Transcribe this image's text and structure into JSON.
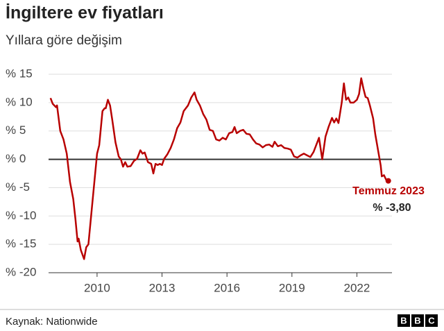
{
  "chart_data": {
    "type": "line",
    "title": "İngiltere ev fiyatları",
    "subtitle": "Yıllara göre değişim",
    "source": "Kaynak: Nationwide",
    "logo": [
      "B",
      "B",
      "C"
    ],
    "xlim": [
      2007.76,
      2023.62
    ],
    "xticks": [
      2010,
      2013,
      2016,
      2019,
      2022
    ],
    "ylim": [
      -20,
      15
    ],
    "yticks": [
      {
        "value": 15,
        "label": "% 15"
      },
      {
        "value": 10,
        "label": "% 10"
      },
      {
        "value": 5,
        "label": "% 5"
      },
      {
        "value": 0,
        "label": "% 0"
      },
      {
        "value": -5,
        "label": "% -5"
      },
      {
        "value": -10,
        "label": "% -10"
      },
      {
        "value": -15,
        "label": "% -15"
      },
      {
        "value": -20,
        "label": "% -20"
      }
    ],
    "grid": true,
    "end_label": {
      "title": "Temmuz 2023",
      "text": "% -3,80"
    },
    "series": [
      {
        "color": "#b80000",
        "x": [
          2007.85,
          2007.95,
          2008.1,
          2008.15,
          2008.3,
          2008.45,
          2008.6,
          2008.75,
          2008.9,
          2009.0,
          2009.1,
          2009.15,
          2009.25,
          2009.4,
          2009.5,
          2009.6,
          2009.75,
          2009.9,
          2010.0,
          2010.1,
          2010.25,
          2010.35,
          2010.4,
          2010.5,
          2010.6,
          2010.7,
          2010.85,
          2011.0,
          2011.1,
          2011.2,
          2011.3,
          2011.4,
          2011.55,
          2011.7,
          2011.85,
          2012.0,
          2012.1,
          2012.2,
          2012.35,
          2012.5,
          2012.6,
          2012.7,
          2012.8,
          2012.9,
          2013.0,
          2013.1,
          2013.25,
          2013.4,
          2013.55,
          2013.7,
          2013.85,
          2014.0,
          2014.2,
          2014.35,
          2014.5,
          2014.6,
          2014.75,
          2014.9,
          2015.05,
          2015.2,
          2015.35,
          2015.5,
          2015.65,
          2015.8,
          2015.95,
          2016.1,
          2016.25,
          2016.35,
          2016.45,
          2016.6,
          2016.75,
          2016.9,
          2017.05,
          2017.2,
          2017.35,
          2017.5,
          2017.65,
          2017.8,
          2017.95,
          2018.1,
          2018.2,
          2018.35,
          2018.5,
          2018.65,
          2018.8,
          2018.95,
          2019.1,
          2019.25,
          2019.4,
          2019.55,
          2019.7,
          2019.85,
          2020.0,
          2020.1,
          2020.25,
          2020.4,
          2020.55,
          2020.7,
          2020.85,
          2020.95,
          2021.05,
          2021.15,
          2021.3,
          2021.4,
          2021.5,
          2021.6,
          2021.7,
          2021.85,
          2022.0,
          2022.1,
          2022.2,
          2022.3,
          2022.4,
          2022.5,
          2022.6,
          2022.75,
          2022.85,
          2023.0,
          2023.1,
          2023.15,
          2023.25,
          2023.35,
          2023.45
        ],
        "values": [
          10.8,
          9.8,
          9.2,
          9.5,
          5,
          3.5,
          1,
          -4,
          -7,
          -10.5,
          -14.5,
          -14,
          -16,
          -17.6,
          -15.5,
          -15,
          -9,
          -3,
          1,
          2.5,
          8.5,
          9,
          9,
          10.5,
          9.5,
          7,
          3,
          0.5,
          0,
          -1.3,
          -0.5,
          -1.3,
          -1.2,
          -0.3,
          0.1,
          1.6,
          1,
          1.2,
          -0.5,
          -0.8,
          -2.5,
          -0.8,
          -1,
          -0.8,
          -1,
          0.1,
          0.9,
          2,
          3.5,
          5.5,
          6.5,
          8.5,
          9.5,
          10.9,
          11.8,
          10.5,
          9.5,
          8,
          7,
          5.2,
          5,
          3.5,
          3.3,
          3.8,
          3.5,
          4.6,
          4.8,
          5.7,
          4.6,
          5,
          5.2,
          4.5,
          4.4,
          3.5,
          2.8,
          2.6,
          2.1,
          2.5,
          2.6,
          2.2,
          3.1,
          2.3,
          2.5,
          2,
          1.9,
          1.7,
          0.5,
          0.3,
          0.7,
          1,
          0.7,
          0.4,
          1.3,
          2.3,
          3.8,
          0,
          4,
          5.8,
          7.3,
          6.5,
          7.2,
          6.4,
          10,
          13.4,
          10.5,
          10.9,
          10,
          10,
          10.5,
          11.5,
          14.3,
          12.5,
          11,
          10.8,
          9.5,
          7.2,
          4.4,
          1.1,
          -1.1,
          -3,
          -2.8,
          -3.6,
          -3.8
        ]
      }
    ]
  }
}
